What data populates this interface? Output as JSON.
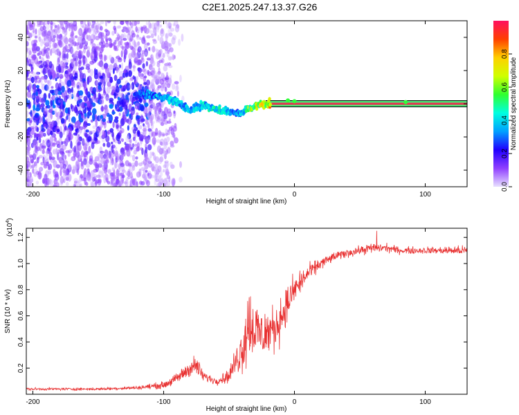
{
  "title": "C2E1.2025.247.13.37.G26",
  "colors": {
    "background": "#ffffff",
    "axis": "#000000",
    "snr_line": "#e83030",
    "spectrogram_line": "#e83050"
  },
  "chart_data": [
    {
      "type": "heatmap",
      "name": "spectrogram",
      "xlabel": "Height of straight line (km)",
      "ylabel": "Frequency (Hz)",
      "xlim": [
        -205,
        132
      ],
      "ylim": [
        -50,
        50
      ],
      "xticks": [
        -200,
        -100,
        0,
        100
      ],
      "xtick_labels": [
        "-200",
        "-100",
        "0",
        "100"
      ],
      "yticks": [
        -40,
        -20,
        0,
        20,
        40
      ],
      "ytick_labels": [
        "-40",
        "-20",
        "0",
        "20",
        "40"
      ],
      "colorbar": {
        "label": "Normalized spectral amplitude",
        "range": [
          0,
          1
        ],
        "ticks": [
          0,
          0.2,
          0.4,
          0.6,
          0.8
        ],
        "tick_labels": [
          "0.0",
          "0.2",
          "0.4",
          "0.6",
          "0.8"
        ],
        "stops": [
          "#e8e0ff",
          "#9040ff",
          "#2000ff",
          "#00a0ff",
          "#00ffe0",
          "#30ff30",
          "#d0ff00",
          "#ffd000",
          "#ff4000",
          "#ff1060"
        ]
      },
      "noise_region_x": [
        -205,
        -100
      ],
      "signal_trace": {
        "x": [
          -122,
          -110,
          -100,
          -90,
          -80,
          -70,
          -60,
          -50,
          -42,
          -35,
          -28,
          -20,
          -10,
          0,
          20,
          60,
          100,
          132
        ],
        "y": [
          6,
          5,
          4,
          1,
          -4,
          -1,
          -3,
          -5,
          -6,
          -3,
          -1,
          0,
          0,
          0,
          0,
          0,
          0,
          0
        ],
        "amplitude": [
          0.3,
          0.4,
          0.45,
          0.5,
          0.45,
          0.5,
          0.55,
          0.45,
          0.4,
          0.7,
          0.8,
          0.9,
          0.95,
          0.95,
          1,
          1,
          1,
          1
        ]
      },
      "tone_line_from_x": -22,
      "tone_line_freq": 0
    },
    {
      "type": "line",
      "name": "snr",
      "xlabel": "Height of straight line (km)",
      "ylabel": "SNR (10 * v/v)",
      "y_multiplier_label": "(x10^4)",
      "y_multiplier_base": "(x10",
      "y_multiplier_exp": "4",
      "y_multiplier_close": ")",
      "xlim": [
        -205,
        132
      ],
      "ylim": [
        0,
        1.27
      ],
      "xticks": [
        -200,
        -100,
        0,
        100
      ],
      "xtick_labels": [
        "-200",
        "-100",
        "0",
        "100"
      ],
      "yticks": [
        0.2,
        0.4,
        0.6,
        0.8,
        1.0,
        1.2
      ],
      "ytick_labels": [
        "0.2",
        "0.4",
        "0.6",
        "0.8",
        "1.0",
        "1.2"
      ],
      "envelope": {
        "x": [
          -205,
          -150,
          -120,
          -100,
          -90,
          -80,
          -75,
          -70,
          -60,
          -50,
          -45,
          -40,
          -35,
          -30,
          -25,
          -20,
          -15,
          -10,
          -5,
          0,
          10,
          20,
          30,
          40,
          50,
          60,
          70,
          80,
          90,
          100,
          110,
          120,
          132
        ],
        "y": [
          0.04,
          0.04,
          0.05,
          0.07,
          0.12,
          0.2,
          0.22,
          0.14,
          0.1,
          0.14,
          0.25,
          0.35,
          0.55,
          0.5,
          0.45,
          0.48,
          0.5,
          0.6,
          0.7,
          0.8,
          0.92,
          1.0,
          1.05,
          1.08,
          1.1,
          1.12,
          1.12,
          1.1,
          1.1,
          1.1,
          1.1,
          1.1,
          1.1
        ],
        "noise": [
          0.015,
          0.015,
          0.02,
          0.04,
          0.06,
          0.1,
          0.12,
          0.06,
          0.04,
          0.08,
          0.15,
          0.3,
          0.45,
          0.35,
          0.3,
          0.28,
          0.25,
          0.25,
          0.2,
          0.18,
          0.1,
          0.07,
          0.05,
          0.05,
          0.05,
          0.06,
          0.05,
          0.04,
          0.04,
          0.04,
          0.04,
          0.05,
          0.05
        ]
      },
      "peak": {
        "x": 63,
        "y": 1.25
      }
    }
  ]
}
